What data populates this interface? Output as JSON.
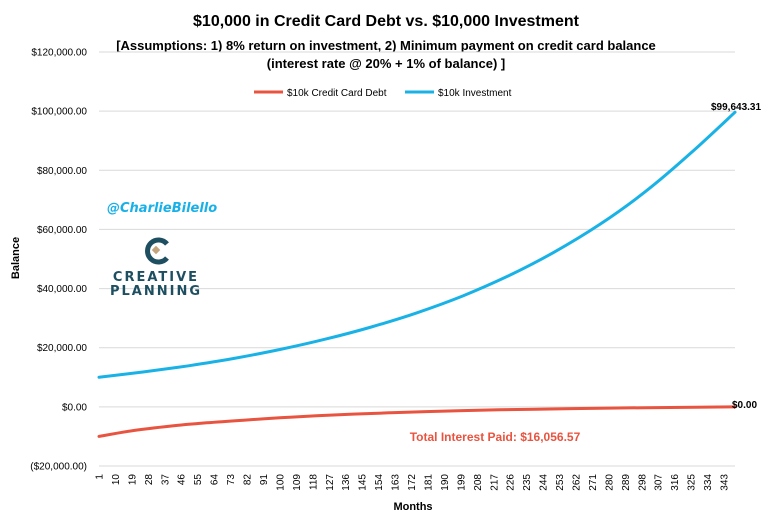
{
  "chart_data": {
    "type": "line",
    "title": "$10,000 in Credit Card Debt vs. $10,000 Investment",
    "subtitle_line1": "[Assumptions: 1) 8% return on investment, 2) Minimum payment on credit card balance",
    "subtitle_line2": "(interest rate @ 20% + 1% of balance) ]",
    "xlabel": "Months",
    "ylabel": "Balance",
    "x_range": [
      1,
      349
    ],
    "x_step": 9,
    "ylim": [
      -20000,
      120000
    ],
    "y_ticks": [
      {
        "value": -20000,
        "label": "($20,000.00)"
      },
      {
        "value": 0,
        "label": "$0.00"
      },
      {
        "value": 20000,
        "label": "$20,000.00"
      },
      {
        "value": 40000,
        "label": "$40,000.00"
      },
      {
        "value": 60000,
        "label": "$60,000.00"
      },
      {
        "value": 80000,
        "label": "$80,000.00"
      },
      {
        "value": 100000,
        "label": "$100,000.00"
      },
      {
        "value": 120000,
        "label": "$120,000.00"
      }
    ],
    "legend_position": "top-center",
    "series": [
      {
        "name": "$10k Credit Card Debt",
        "color": "#e8543f",
        "x": [
          1,
          20,
          40,
          60,
          80,
          100,
          120,
          140,
          160,
          180,
          200,
          220,
          240,
          260,
          280,
          300,
          320,
          340,
          349
        ],
        "y": [
          -10000,
          -8000,
          -6500,
          -5400,
          -4500,
          -3700,
          -3000,
          -2450,
          -2000,
          -1600,
          -1280,
          -1000,
          -800,
          -600,
          -430,
          -280,
          -170,
          -60,
          0
        ]
      },
      {
        "name": "$10k Investment",
        "color": "#19b2e6",
        "x": [
          1,
          25,
          50,
          75,
          100,
          125,
          150,
          175,
          200,
          225,
          250,
          275,
          300,
          325,
          349
        ],
        "y": [
          10000,
          11800,
          13900,
          16400,
          19400,
          22900,
          27000,
          31800,
          37500,
          44300,
          52300,
          61700,
          72800,
          85900,
          99643.31
        ]
      }
    ],
    "annotations": {
      "investment_end": "$99,643.31",
      "debt_end": "$0.00",
      "total_interest": "Total Interest Paid: $16,056.57",
      "watermark_handle": "@CharlieBilello"
    },
    "logo": {
      "line1": "CREATIVE",
      "line2": "PLANNING"
    },
    "colors": {
      "grid": "#d9d9d9",
      "debt_annotation": "#e8543f",
      "watermark": "#18b0e8",
      "logo": "#1d4f61",
      "logo_accent": "#c4a47c"
    }
  }
}
